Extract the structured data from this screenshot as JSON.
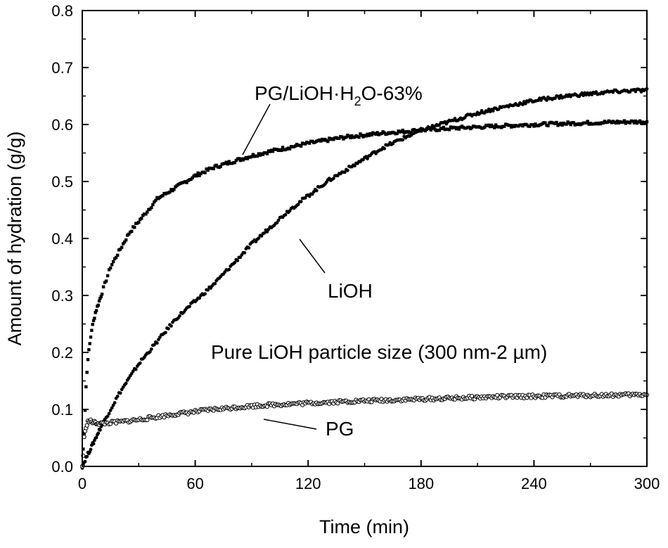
{
  "chart_data": {
    "type": "scatter",
    "title": "",
    "xlabel": "Time (min)",
    "ylabel": "Amount of hydration (g/g)",
    "xlim": [
      0,
      300
    ],
    "ylim": [
      0,
      0.8
    ],
    "x_ticks": [
      "0",
      "60",
      "120",
      "180",
      "240",
      "300"
    ],
    "y_ticks": [
      "0.0",
      "0.1",
      "0.2",
      "0.3",
      "0.4",
      "0.5",
      "0.6",
      "0.7",
      "0.8"
    ],
    "grid": false,
    "series": [
      {
        "name": "PG/LiOH·H2O-63%",
        "marker": "filled-square",
        "color": "#000000",
        "x": [
          0,
          1,
          2,
          3,
          5,
          7,
          10,
          15,
          20,
          25,
          30,
          40,
          50,
          60,
          70,
          80,
          90,
          100,
          110,
          120,
          140,
          160,
          180,
          200,
          220,
          240,
          260,
          280,
          300
        ],
        "y": [
          0.0,
          0.06,
          0.14,
          0.19,
          0.24,
          0.27,
          0.3,
          0.35,
          0.38,
          0.41,
          0.43,
          0.47,
          0.49,
          0.51,
          0.525,
          0.535,
          0.545,
          0.553,
          0.56,
          0.567,
          0.578,
          0.585,
          0.59,
          0.594,
          0.597,
          0.6,
          0.602,
          0.604,
          0.605
        ]
      },
      {
        "name": "LiOH",
        "marker": "filled-circle",
        "color": "#000000",
        "x": [
          0,
          2,
          5,
          10,
          15,
          20,
          30,
          40,
          50,
          60,
          70,
          80,
          90,
          100,
          110,
          120,
          130,
          140,
          150,
          160,
          170,
          180,
          190,
          200,
          210,
          220,
          230,
          240,
          250,
          260,
          270,
          280,
          290,
          300
        ],
        "y": [
          0.0,
          0.015,
          0.035,
          0.07,
          0.1,
          0.13,
          0.18,
          0.22,
          0.26,
          0.29,
          0.32,
          0.355,
          0.39,
          0.42,
          0.45,
          0.475,
          0.5,
          0.52,
          0.54,
          0.56,
          0.575,
          0.59,
          0.6,
          0.61,
          0.62,
          0.628,
          0.635,
          0.642,
          0.647,
          0.651,
          0.654,
          0.657,
          0.659,
          0.66
        ]
      },
      {
        "name": "PG",
        "marker": "open-circle",
        "color": "#000000",
        "x": [
          0,
          0.5,
          1,
          2,
          3,
          4,
          6,
          10,
          20,
          30,
          40,
          50,
          60,
          70,
          80,
          90,
          100,
          120,
          140,
          160,
          180,
          200,
          220,
          240,
          260,
          280,
          300
        ],
        "y": [
          0.0,
          0.02,
          0.05,
          0.07,
          0.078,
          0.08,
          0.077,
          0.075,
          0.078,
          0.082,
          0.087,
          0.092,
          0.096,
          0.1,
          0.103,
          0.106,
          0.108,
          0.111,
          0.114,
          0.116,
          0.118,
          0.12,
          0.122,
          0.123,
          0.124,
          0.125,
          0.126
        ]
      }
    ],
    "annotations": [
      {
        "text": "PG/LiOH·H",
        "sub": "2",
        "text_after": "O-63%",
        "target_series": "PG/LiOH·H2O-63%"
      },
      {
        "text": "LiOH",
        "target_series": "LiOH"
      },
      {
        "text": "PG",
        "target_series": "PG"
      },
      {
        "text": "Pure LiOH particle size (300 nm-2 µm)"
      }
    ]
  }
}
